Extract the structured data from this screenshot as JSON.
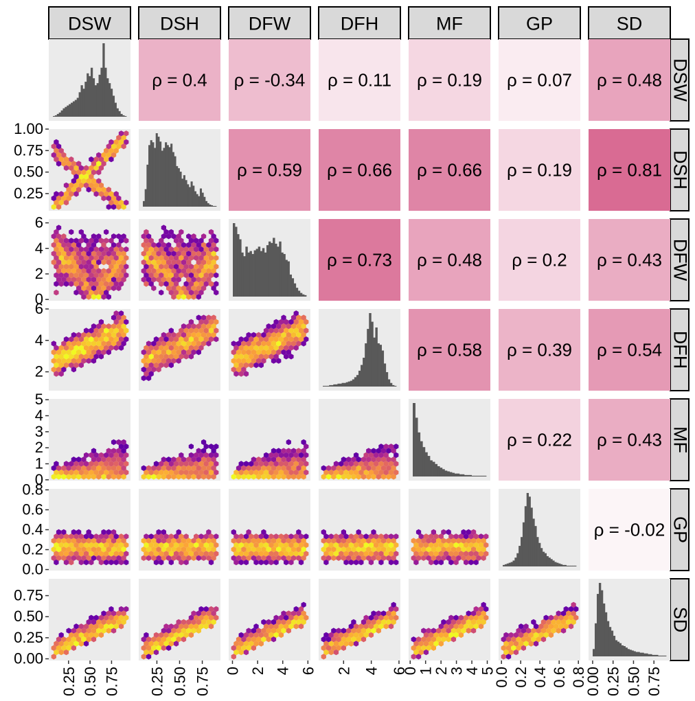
{
  "chart_data": {
    "type": "pairs",
    "variables": [
      "DSW",
      "DSH",
      "DFW",
      "DFH",
      "MF",
      "GP",
      "SD"
    ],
    "column_strips": [
      "DSW",
      "DSH",
      "DFW",
      "DFH",
      "MF",
      "GP",
      "SD"
    ],
    "row_strips": [
      "DSW",
      "DSH",
      "DFW",
      "DFH",
      "MF",
      "GP",
      "SD"
    ],
    "lower_panels": "hexbin density scatter",
    "diagonal_panels": "histogram",
    "upper_panels": "Spearman correlation, tile shaded by magnitude",
    "correlations": [
      {
        "row": "DSW",
        "col": "DSH",
        "rho": 0.4,
        "label": "ρ = 0.4"
      },
      {
        "row": "DSW",
        "col": "DFW",
        "rho": -0.34,
        "label": "ρ = -0.34"
      },
      {
        "row": "DSW",
        "col": "DFH",
        "rho": 0.11,
        "label": "ρ = 0.11"
      },
      {
        "row": "DSW",
        "col": "MF",
        "rho": 0.19,
        "label": "ρ = 0.19"
      },
      {
        "row": "DSW",
        "col": "GP",
        "rho": 0.07,
        "label": "ρ = 0.07"
      },
      {
        "row": "DSW",
        "col": "SD",
        "rho": 0.48,
        "label": "ρ = 0.48"
      },
      {
        "row": "DSH",
        "col": "DFW",
        "rho": 0.59,
        "label": "ρ = 0.59"
      },
      {
        "row": "DSH",
        "col": "DFH",
        "rho": 0.66,
        "label": "ρ = 0.66"
      },
      {
        "row": "DSH",
        "col": "MF",
        "rho": 0.66,
        "label": "ρ = 0.66"
      },
      {
        "row": "DSH",
        "col": "GP",
        "rho": 0.19,
        "label": "ρ = 0.19"
      },
      {
        "row": "DSH",
        "col": "SD",
        "rho": 0.81,
        "label": "ρ = 0.81"
      },
      {
        "row": "DFW",
        "col": "DFH",
        "rho": 0.73,
        "label": "ρ = 0.73"
      },
      {
        "row": "DFW",
        "col": "MF",
        "rho": 0.48,
        "label": "ρ = 0.48"
      },
      {
        "row": "DFW",
        "col": "GP",
        "rho": 0.2,
        "label": "ρ = 0.2"
      },
      {
        "row": "DFW",
        "col": "SD",
        "rho": 0.43,
        "label": "ρ = 0.43"
      },
      {
        "row": "DFH",
        "col": "MF",
        "rho": 0.58,
        "label": "ρ = 0.58"
      },
      {
        "row": "DFH",
        "col": "GP",
        "rho": 0.39,
        "label": "ρ = 0.39"
      },
      {
        "row": "DFH",
        "col": "SD",
        "rho": 0.54,
        "label": "ρ = 0.54"
      },
      {
        "row": "MF",
        "col": "GP",
        "rho": 0.22,
        "label": "ρ = 0.22"
      },
      {
        "row": "MF",
        "col": "SD",
        "rho": 0.43,
        "label": "ρ = 0.43"
      },
      {
        "row": "GP",
        "col": "SD",
        "rho": -0.02,
        "label": "ρ = -0.02"
      }
    ],
    "x_axes": [
      {
        "variable": "DSW",
        "ticks": [
          0.25,
          0.5,
          0.75
        ],
        "labels": [
          "0.25",
          "0.50",
          "0.75"
        ],
        "range": [
          0.02,
          0.97
        ]
      },
      {
        "variable": "DSH",
        "ticks": [
          0.25,
          0.5,
          0.75
        ],
        "labels": [
          "0.25",
          "0.50",
          "0.75"
        ],
        "range": [
          0.05,
          0.95
        ]
      },
      {
        "variable": "DFW",
        "ticks": [
          0,
          2,
          4,
          6
        ],
        "labels": [
          "0",
          "2",
          "4",
          "6"
        ],
        "range": [
          -0.3,
          6.2
        ]
      },
      {
        "variable": "DFH",
        "ticks": [
          2,
          4,
          6
        ],
        "labels": [
          "2",
          "4",
          "6"
        ],
        "range": [
          0.2,
          6.1
        ]
      },
      {
        "variable": "MF",
        "ticks": [
          0,
          1,
          2,
          3,
          4,
          5
        ],
        "labels": [
          "0",
          "1",
          "2",
          "3",
          "4",
          "5"
        ],
        "range": [
          -0.1,
          5.2
        ]
      },
      {
        "variable": "GP",
        "ticks": [
          0,
          0.2,
          0.4,
          0.6,
          0.8
        ],
        "labels": [
          "0.0",
          "0.2",
          "0.4",
          "0.6",
          "0.8"
        ],
        "range": [
          -0.03,
          0.82
        ]
      },
      {
        "variable": "SD",
        "ticks": [
          0,
          0.25,
          0.5,
          0.75
        ],
        "labels": [
          "0.00",
          "0.25",
          "0.50",
          "0.75"
        ],
        "range": [
          -0.05,
          0.95
        ]
      }
    ],
    "y_axes": [
      {
        "variable": "DSH",
        "ticks": [
          0.25,
          0.5,
          0.75,
          1.0
        ],
        "labels": [
          "0.25",
          "0.50",
          "0.75",
          "1.00"
        ],
        "range": [
          0.05,
          1.0
        ]
      },
      {
        "variable": "DFW",
        "ticks": [
          0,
          2,
          4,
          6
        ],
        "labels": [
          "0",
          "2",
          "4",
          "6"
        ],
        "range": [
          -0.1,
          6.3
        ]
      },
      {
        "variable": "DFH",
        "ticks": [
          2,
          4,
          6
        ],
        "labels": [
          "2",
          "4",
          "6"
        ],
        "range": [
          0.8,
          6.0
        ]
      },
      {
        "variable": "MF",
        "ticks": [
          0,
          1,
          2,
          3,
          4,
          5
        ],
        "labels": [
          "0",
          "1",
          "2",
          "3",
          "4",
          "5"
        ],
        "range": [
          -0.05,
          5.05
        ]
      },
      {
        "variable": "GP",
        "ticks": [
          0,
          0.2,
          0.4,
          0.6,
          0.8
        ],
        "labels": [
          "0.0",
          "0.2",
          "0.4",
          "0.6",
          "0.8"
        ],
        "range": [
          -0.01,
          0.81
        ]
      },
      {
        "variable": "SD",
        "ticks": [
          0,
          0.25,
          0.5,
          0.75
        ],
        "labels": [
          "0.00",
          "0.25",
          "0.50",
          "0.75"
        ],
        "range": [
          -0.02,
          0.95
        ]
      }
    ],
    "histograms": [
      {
        "variable": "DSW",
        "counts": [
          1,
          2,
          4,
          6,
          9,
          12,
          14,
          16,
          18,
          20,
          22,
          24,
          27,
          35,
          45,
          40,
          50,
          62,
          58,
          70,
          55,
          45,
          48,
          60,
          70,
          105,
          70,
          55,
          48,
          40,
          30,
          20,
          12,
          8,
          4,
          2,
          1
        ]
      },
      {
        "variable": "DSH",
        "counts": [
          8,
          25,
          60,
          88,
          95,
          92,
          84,
          105,
          100,
          93,
          80,
          84,
          92,
          88,
          85,
          90,
          78,
          72,
          58,
          55,
          50,
          40,
          45,
          38,
          32,
          28,
          36,
          30,
          22,
          18,
          15,
          26,
          20,
          14,
          8,
          5,
          3,
          2,
          1,
          1
        ]
      },
      {
        "variable": "DFW",
        "counts": [
          100,
          95,
          85,
          78,
          60,
          55,
          68,
          60,
          62,
          58,
          63,
          65,
          68,
          62,
          66,
          60,
          70,
          75,
          73,
          80,
          72,
          68,
          75,
          60,
          58,
          50,
          48,
          30,
          25,
          18,
          12,
          8,
          5,
          3,
          2
        ]
      },
      {
        "variable": "DFH",
        "counts": [
          1,
          1,
          1,
          2,
          2,
          3,
          3,
          4,
          4,
          5,
          5,
          6,
          7,
          8,
          10,
          13,
          16,
          22,
          30,
          40,
          60,
          80,
          102,
          90,
          68,
          82,
          60,
          58,
          50,
          32,
          20,
          10,
          5,
          2,
          1
        ]
      },
      {
        "variable": "MF",
        "counts": [
          100,
          80,
          60,
          48,
          40,
          33,
          28,
          22,
          20,
          17,
          14,
          12,
          10,
          8,
          7,
          6,
          5,
          4,
          4,
          3,
          3,
          2,
          2,
          2,
          1,
          1,
          1,
          1,
          1,
          1
        ]
      },
      {
        "variable": "GP",
        "counts": [
          2,
          3,
          4,
          5,
          6,
          8,
          12,
          18,
          28,
          40,
          60,
          82,
          100,
          95,
          80,
          65,
          55,
          40,
          32,
          25,
          20,
          18,
          14,
          12,
          10,
          8,
          6,
          5,
          4,
          3,
          2,
          2,
          1,
          1,
          1,
          1,
          1
        ]
      },
      {
        "variable": "SD",
        "counts": [
          10,
          45,
          85,
          100,
          90,
          72,
          60,
          48,
          40,
          35,
          28,
          22,
          20,
          18,
          15,
          14,
          12,
          10,
          9,
          8,
          7,
          6,
          6,
          5,
          5,
          4,
          4,
          3,
          3,
          2,
          2,
          2,
          1,
          1,
          1,
          1
        ]
      }
    ],
    "colors": {
      "panel_background": "#ebebeb",
      "strip_fill": "#d9d9d9",
      "histogram_bar": "#595959",
      "correlation_high": "#d7648e",
      "correlation_low": "#fdf8fa",
      "hex_palette": [
        "#0d0887",
        "#6a00a8",
        "#b12a90",
        "#e16462",
        "#fca636",
        "#f0f921"
      ]
    }
  }
}
